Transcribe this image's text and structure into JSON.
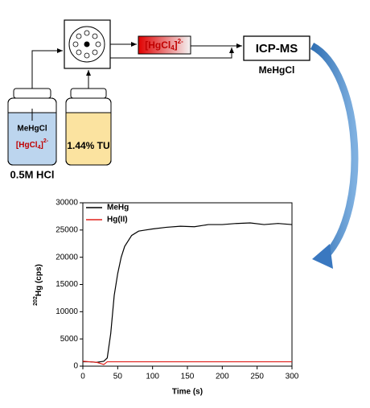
{
  "diagram": {
    "complex": {
      "base": "[HgCl",
      "sub": "4",
      "close": "]",
      "sup": "2-"
    },
    "detector": "ICP-MS",
    "detected_species": "MeHgCl",
    "bottle1": {
      "species": "MeHgCl",
      "solvent": "0.5M HCl"
    },
    "bottle2": {
      "label": "1.44% TU"
    }
  },
  "chart_data": {
    "type": "line",
    "x_label": "Time (s)",
    "y_label": {
      "sup": "202",
      "text": "Hg (cps)"
    },
    "x": [
      0,
      10,
      20,
      30,
      35,
      40,
      45,
      50,
      55,
      60,
      70,
      80,
      90,
      100,
      120,
      140,
      160,
      180,
      200,
      220,
      240,
      260,
      280,
      300
    ],
    "series": [
      {
        "name": "MeHg",
        "color": "#000000",
        "values": [
          800,
          800,
          700,
          900,
          1500,
          6000,
          13000,
          17000,
          20000,
          22000,
          24000,
          24800,
          25000,
          25200,
          25500,
          25700,
          25600,
          26000,
          26000,
          26200,
          26300,
          26000,
          26200,
          26000
        ]
      },
      {
        "name": "Hg(II)",
        "color": "#e0201c",
        "values": [
          900,
          800,
          700,
          300,
          800,
          800,
          800,
          800,
          800,
          800,
          800,
          800,
          800,
          800,
          800,
          800,
          800,
          800,
          800,
          800,
          800,
          800,
          800,
          800
        ]
      }
    ],
    "xlim": [
      0,
      300
    ],
    "xticks": [
      0,
      50,
      100,
      150,
      200,
      250,
      300
    ],
    "ylim": [
      0,
      30000
    ],
    "yticks": [
      0,
      5000,
      10000,
      15000,
      20000,
      25000,
      30000
    ],
    "legend": "top-left"
  }
}
